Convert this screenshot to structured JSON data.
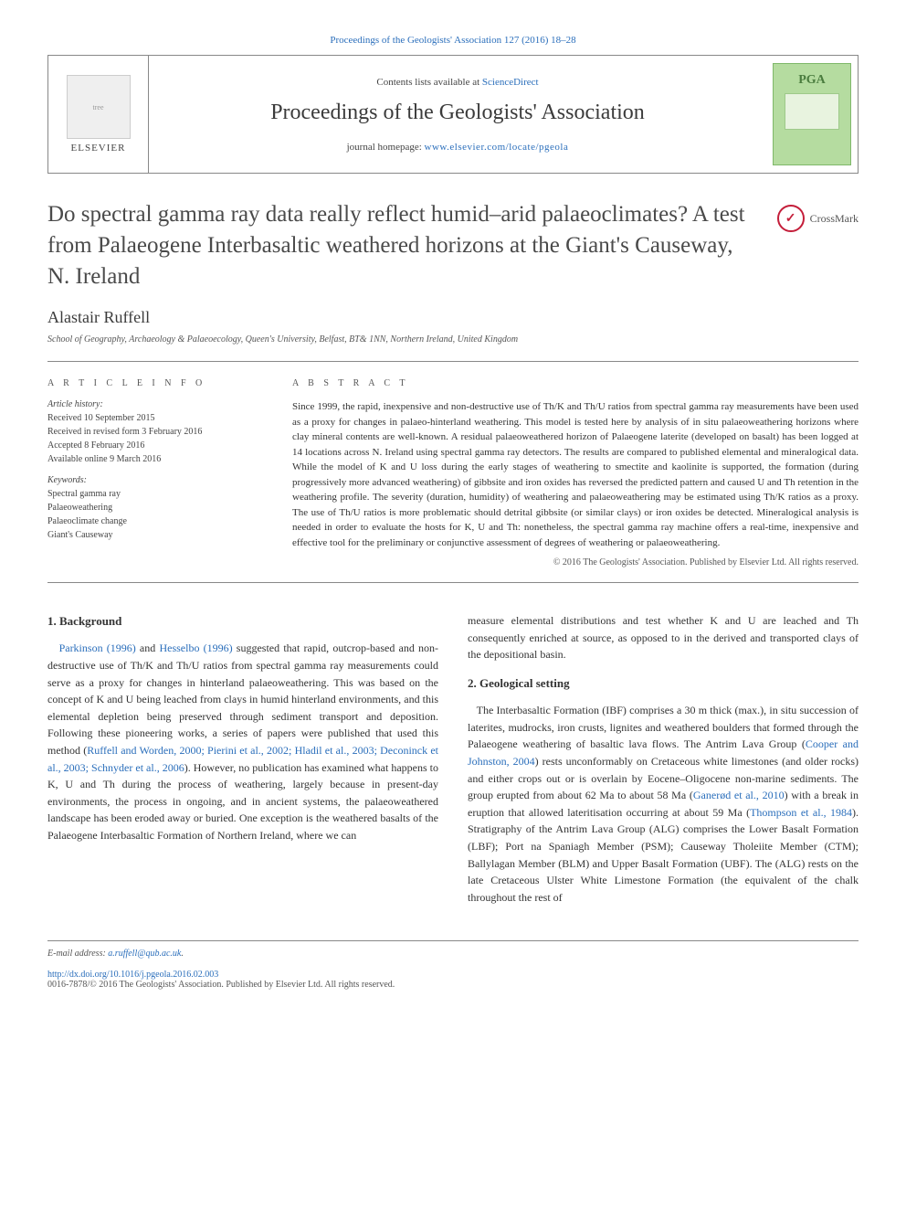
{
  "top_link": {
    "prefix": "",
    "journal": "Proceedings of the Geologists' Association 127 (2016) 18–28"
  },
  "header": {
    "elsevier_label": "ELSEVIER",
    "contents_prefix": "Contents lists available at ",
    "contents_link": "ScienceDirect",
    "journal_name": "Proceedings of the Geologists' Association",
    "homepage_prefix": "journal homepage: ",
    "homepage_url": "www.elsevier.com/locate/pgeola",
    "cover_top": "",
    "cover_pga": "PGA"
  },
  "crossmark_label": "CrossMark",
  "title": "Do spectral gamma ray data really reflect humid–arid palaeoclimates? A test from Palaeogene Interbasaltic weathered horizons at the Giant's Causeway, N. Ireland",
  "author": "Alastair Ruffell",
  "affiliation": "School of Geography, Archaeology & Palaeoecology, Queen's University, Belfast, BT& 1NN, Northern Ireland, United Kingdom",
  "article_info_heading": "A R T I C L E   I N F O",
  "abstract_heading": "A B S T R A C T",
  "history_heading": "Article history:",
  "history": [
    "Received 10 September 2015",
    "Received in revised form 3 February 2016",
    "Accepted 8 February 2016",
    "Available online 9 March 2016"
  ],
  "keywords_heading": "Keywords:",
  "keywords": [
    "Spectral gamma ray",
    "Palaeoweathering",
    "Palaeoclimate change",
    "Giant's Causeway"
  ],
  "abstract": "Since 1999, the rapid, inexpensive and non-destructive use of Th/K and Th/U ratios from spectral gamma ray measurements have been used as a proxy for changes in palaeo-hinterland weathering. This model is tested here by analysis of in situ palaeoweathering horizons where clay mineral contents are well-known. A residual palaeoweathered horizon of Palaeogene laterite (developed on basalt) has been logged at 14 locations across N. Ireland using spectral gamma ray detectors. The results are compared to published elemental and mineralogical data. While the model of K and U loss during the early stages of weathering to smectite and kaolinite is supported, the formation (during progressively more advanced weathering) of gibbsite and iron oxides has reversed the predicted pattern and caused U and Th retention in the weathering profile. The severity (duration, humidity) of weathering and palaeoweathering may be estimated using Th/K ratios as a proxy. The use of Th/U ratios is more problematic should detrital gibbsite (or similar clays) or iron oxides be detected. Mineralogical analysis is needed in order to evaluate the hosts for K, U and Th: nonetheless, the spectral gamma ray machine offers a real-time, inexpensive and effective tool for the preliminary or conjunctive assessment of degrees of weathering or palaeoweathering.",
  "copyright": "© 2016 The Geologists' Association. Published by Elsevier Ltd. All rights reserved.",
  "sections": {
    "s1": {
      "heading": "1. Background"
    },
    "s2": {
      "heading": "2. Geological setting"
    }
  },
  "body": {
    "p1a": "Parkinson (1996)",
    "p1b": " and ",
    "p1c": "Hesselbo (1996)",
    "p1d": " suggested that rapid, outcrop-based and non-destructive use of Th/K and Th/U ratios from spectral gamma ray measurements could serve as a proxy for changes in hinterland palaeoweathering. This was based on the concept of K and U being leached from clays in humid hinterland environments, and this elemental depletion being preserved through sediment transport and deposition. Following these pioneering works, a series of papers were published that used this method (",
    "p1e": "Ruffell and Worden, 2000; Pierini et al., 2002; Hladil et al., 2003; Deconinck et al., 2003; Schnyder et al., 2006",
    "p1f": "). However, no publication has examined what happens to K, U and Th during the process of weathering, largely because in present-day environments, the process in ongoing, and in ancient systems, the palaeoweathered landscape has been eroded away or buried. One exception is the weathered basalts of the Palaeogene Interbasaltic Formation of Northern Ireland, where we can",
    "p2": "measure elemental distributions and test whether K and U are leached and Th consequently enriched at source, as opposed to in the derived and transported clays of the depositional basin.",
    "p3a": "The Interbasaltic Formation (IBF) comprises a 30 m thick (max.), in situ succession of laterites, mudrocks, iron crusts, lignites and weathered boulders that formed through the Palaeogene weathering of basaltic lava flows. The Antrim Lava Group (",
    "p3b": "Cooper and Johnston, 2004",
    "p3c": ") rests unconformably on Cretaceous white limestones (and older rocks) and either crops out or is overlain by Eocene–Oligocene non-marine sediments. The group erupted from about 62 Ma to about 58 Ma (",
    "p3d": "Ganerød et al., 2010",
    "p3e": ") with a break in eruption that allowed lateritisation occurring at about 59 Ma (",
    "p3f": "Thompson et al., 1984",
    "p3g": "). Stratigraphy of the Antrim Lava Group (ALG) comprises the Lower Basalt Formation (LBF); Port na Spaniagh Member (PSM); Causeway Tholeiite Member (CTM); Ballylagan Member (BLM) and Upper Basalt Formation (UBF). The (ALG) rests on the late Cretaceous Ulster White Limestone Formation (the equivalent of the chalk throughout the rest of"
  },
  "footer": {
    "email_label": "E-mail address: ",
    "email": "a.ruffell@qub.ac.uk",
    "doi": "http://dx.doi.org/10.1016/j.pgeola.2016.02.003",
    "issn_line": "0016-7878/© 2016 The Geologists' Association. Published by Elsevier Ltd. All rights reserved."
  }
}
